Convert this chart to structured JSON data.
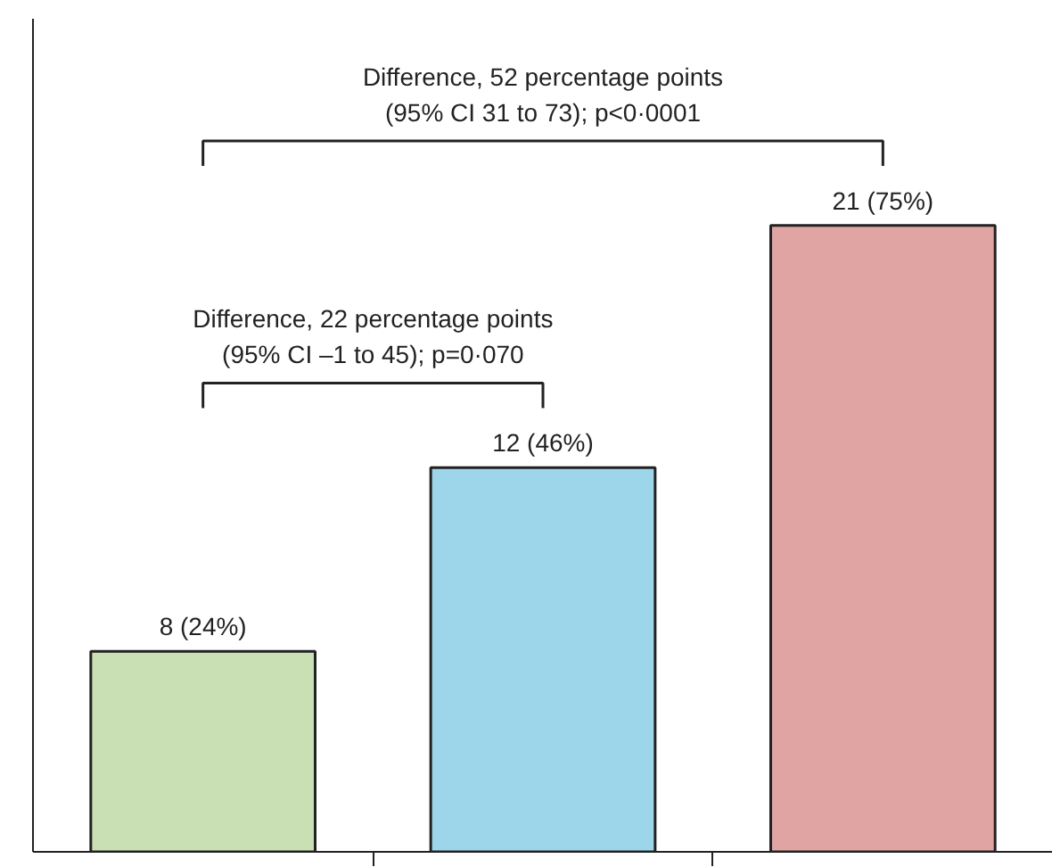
{
  "chart_data": {
    "type": "bar",
    "categories": [
      null,
      null,
      null
    ],
    "values": [
      24,
      46,
      75
    ],
    "colors": [
      "#c9dfb4",
      "#9dd6ea",
      "#e0a4a2"
    ],
    "value_labels": [
      "8 (24%)",
      "12 (46%)",
      "21 (75%)"
    ],
    "annotations": [
      "Difference, 52 percentage points\n(95% CI 31 to 73); p<0·0001",
      "Difference, 22 percentage points\n(95% CI –1 to 45); p=0·070"
    ]
  }
}
